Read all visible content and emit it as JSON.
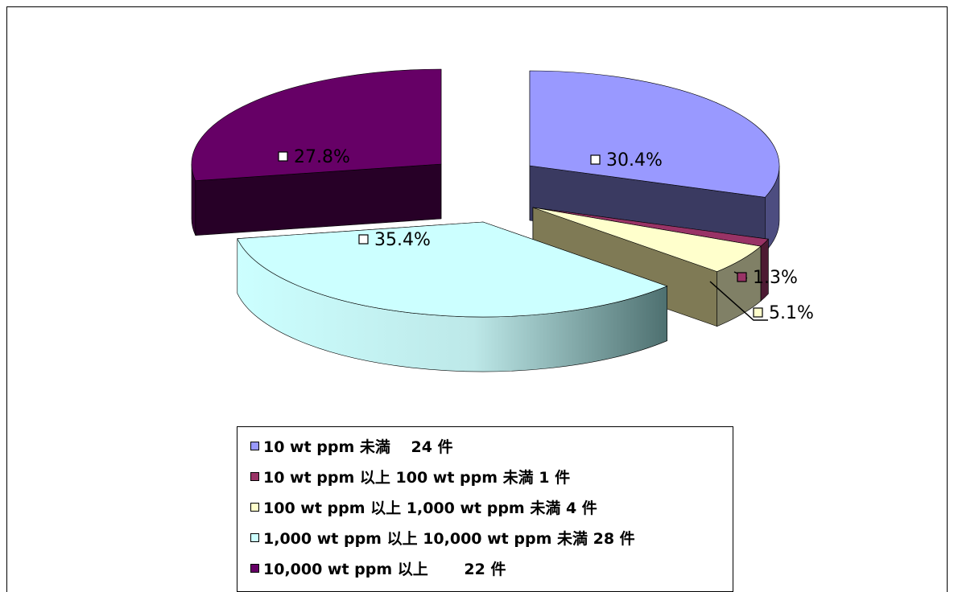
{
  "chart_data": {
    "type": "pie",
    "variant": "3d-exploded",
    "slices": [
      {
        "legend": "10 wt ppm 未満　 24 件",
        "count": 24,
        "value": 30.4,
        "label": "30.4%",
        "color": "#9999ff"
      },
      {
        "legend": "10 wt ppm 以上 100 wt ppm 未満 1 件",
        "count": 1,
        "value": 1.3,
        "label": "1.3%",
        "color": "#993366"
      },
      {
        "legend": "100 wt ppm 以上 1,000 wt ppm 未満 4 件",
        "count": 4,
        "value": 5.1,
        "label": "5.1%",
        "color": "#ffffcc"
      },
      {
        "legend": "1,000 wt ppm 以上 10,000 wt ppm 未満 28 件",
        "count": 28,
        "value": 35.4,
        "label": "35.4%",
        "color": "#ccffff"
      },
      {
        "legend": "10,000 wt ppm 以上　　 22 件",
        "count": 22,
        "value": 27.8,
        "label": "27.8%",
        "color": "#660066"
      }
    ],
    "legend_position": "bottom"
  }
}
